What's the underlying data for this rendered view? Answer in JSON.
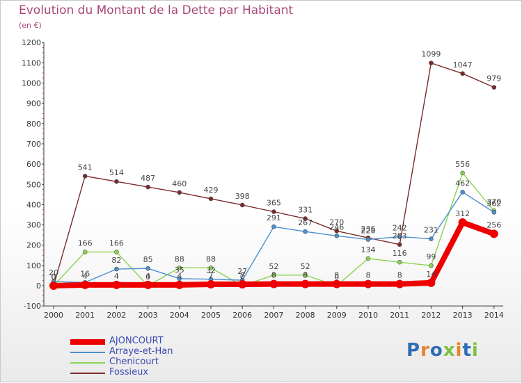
{
  "header": {
    "title": "Evolution du Montant de la Dette par Habitant",
    "subtitle": "(en €)"
  },
  "logo": {
    "text": "Proxiti",
    "letter_colors": [
      "#2e6db4",
      "#e8812a",
      "#2e6db4",
      "#7cc242",
      "#e8812a",
      "#2e6db4",
      "#7cc242"
    ]
  },
  "chart_data": {
    "type": "line",
    "title": "Evolution du Montant de la Dette par Habitant",
    "subtitle": "(en €)",
    "xlabel": "",
    "ylabel": "",
    "categories": [
      "2000",
      "2001",
      "2002",
      "2003",
      "2004",
      "2005",
      "2006",
      "2007",
      "2008",
      "2009",
      "2010",
      "2011",
      "2012",
      "2013",
      "2014"
    ],
    "ylim": [
      -100,
      1200
    ],
    "yticks": [
      -100,
      0,
      100,
      200,
      300,
      400,
      500,
      600,
      700,
      800,
      900,
      1000,
      1100,
      1200
    ],
    "grid": false,
    "legend_position": "bottom-left",
    "series": [
      {
        "name": "Fossieux",
        "color": "#7b2a2a",
        "values": [
          0,
          541,
          514,
          487,
          460,
          429,
          398,
          365,
          331,
          270,
          236,
          203,
          1099,
          1047,
          979
        ],
        "labels": [
          "0",
          "541",
          "514",
          "487",
          "460",
          "429",
          "398",
          "365",
          "331",
          "270",
          "236",
          "203",
          "1099",
          "1047",
          "979"
        ]
      },
      {
        "name": "Chenicourt",
        "color": "#8ad44f",
        "values": [
          0,
          166,
          166,
          0,
          88,
          88,
          0,
          52,
          52,
          0,
          134,
          116,
          99,
          556,
          370
        ],
        "labels": [
          "0",
          "166",
          "166",
          "0",
          "88",
          "88",
          "0",
          "52",
          "52",
          "0",
          "134",
          "116",
          "99",
          "556",
          "370"
        ]
      },
      {
        "name": "Arraye-et-Han",
        "color": "#4a8fd0",
        "values": [
          20,
          16,
          82,
          85,
          35,
          32,
          27,
          291,
          267,
          246,
          228,
          242,
          231,
          462,
          362
        ],
        "labels": [
          "20",
          "16",
          "82",
          "85",
          "35",
          "32",
          "27",
          "291",
          "267",
          "246",
          "228",
          "242",
          "231",
          "462",
          "362"
        ]
      },
      {
        "name": "AJONCOURT",
        "color": "#ee0000",
        "values": [
          0,
          4,
          4,
          4,
          4,
          7,
          7,
          8,
          8,
          8,
          8,
          8,
          14,
          312,
          256
        ],
        "labels": [
          "0",
          "4",
          "4",
          "4",
          "4",
          "7",
          "7",
          "8",
          "8",
          "8",
          "8",
          "8",
          "14",
          "312",
          "256"
        ]
      }
    ]
  },
  "legend": [
    {
      "label": "AJONCOURT",
      "color": "#ee0000"
    },
    {
      "label": "Arraye-et-Han",
      "color": "#4a8fd0"
    },
    {
      "label": "Chenicourt",
      "color": "#8ad44f"
    },
    {
      "label": "Fossieux",
      "color": "#7b2a2a"
    }
  ]
}
